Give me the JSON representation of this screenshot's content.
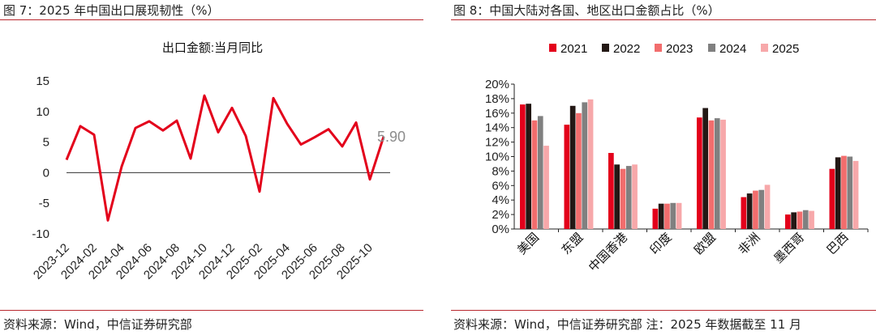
{
  "left_panel": {
    "title": "图 7：2025 年中国出口展现韧性（%）",
    "source": "资料来源：Wind，中信证券研究部"
  },
  "right_panel": {
    "title": "图 8：中国大陆对各国、地区出口金额占比（%）",
    "source": "资料来源：Wind，中信证券研究部  注：2025 年数据截至 11 月"
  },
  "chart_data": [
    {
      "type": "line",
      "title": "出口金额:当月同比",
      "xlabel": "",
      "ylabel": "",
      "ylim": [
        -10,
        15
      ],
      "yticks": [
        -10,
        -5,
        0,
        5,
        10,
        15
      ],
      "x": [
        "2023-12",
        "2024-01",
        "2024-02",
        "2024-03",
        "2024-04",
        "2024-05",
        "2024-06",
        "2024-07",
        "2024-08",
        "2024-09",
        "2024-10",
        "2024-11",
        "2024-12",
        "2025-01",
        "2025-02",
        "2025-03",
        "2025-04",
        "2025-05",
        "2025-06",
        "2025-07",
        "2025-08",
        "2025-09",
        "2025-10",
        "2025-11"
      ],
      "xtick_labels": [
        "2023-12",
        "2024-02",
        "2024-04",
        "2024-06",
        "2024-08",
        "2024-10",
        "2024-12",
        "2025-02",
        "2025-04",
        "2025-06",
        "2025-08",
        "2025-10"
      ],
      "series": [
        {
          "name": "出口金额:当月同比",
          "values": [
            2.1,
            7.6,
            6.2,
            -7.8,
            1.0,
            7.3,
            8.4,
            6.9,
            8.5,
            2.3,
            12.6,
            6.6,
            10.6,
            6.0,
            -3.1,
            12.2,
            8.0,
            4.6,
            5.8,
            7.1,
            4.3,
            8.2,
            -1.1,
            5.9
          ],
          "color": "#e3001b"
        }
      ],
      "end_label": "5.90",
      "grid": false,
      "legend": false
    },
    {
      "type": "bar",
      "title": "",
      "xlabel": "",
      "ylabel": "",
      "ylim": [
        0,
        20
      ],
      "ytick_labels": [
        "0%",
        "2%",
        "4%",
        "6%",
        "8%",
        "10%",
        "12%",
        "14%",
        "16%",
        "18%",
        "20%"
      ],
      "categories": [
        "美国",
        "东盟",
        "中国香港",
        "印度",
        "欧盟",
        "非洲",
        "墨西哥",
        "巴西"
      ],
      "series": [
        {
          "name": "2021",
          "color": "#e3001b",
          "values": [
            17.2,
            14.4,
            10.5,
            2.8,
            15.4,
            4.4,
            2.0,
            8.3
          ]
        },
        {
          "name": "2022",
          "color": "#231815",
          "values": [
            17.3,
            17.0,
            8.9,
            3.5,
            16.7,
            4.9,
            2.3,
            9.9
          ]
        },
        {
          "name": "2023",
          "color": "#f26d6d",
          "values": [
            15.0,
            16.0,
            8.3,
            3.5,
            15.0,
            5.3,
            2.4,
            10.1
          ]
        },
        {
          "name": "2024",
          "color": "#808080",
          "values": [
            15.6,
            17.5,
            8.7,
            3.6,
            15.3,
            5.4,
            2.6,
            10.0
          ]
        },
        {
          "name": "2025",
          "color": "#f7a8aa",
          "values": [
            11.5,
            17.9,
            8.9,
            3.6,
            15.1,
            6.1,
            2.5,
            9.4
          ]
        }
      ],
      "legend": "top",
      "grid": false
    }
  ]
}
